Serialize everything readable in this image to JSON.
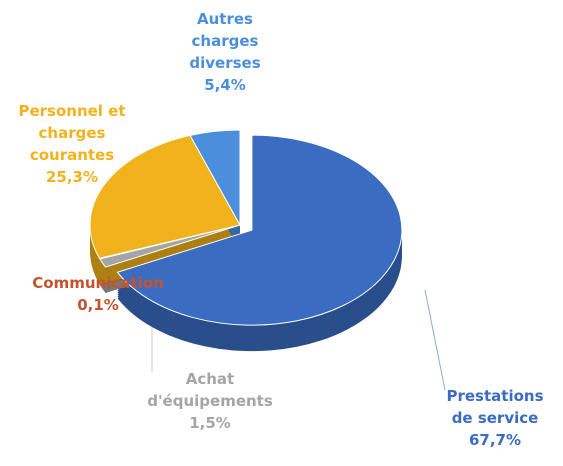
{
  "chart_data": {
    "type": "pie",
    "categories": [
      "Prestations de service",
      "Achat d'équipements",
      "Communication",
      "Personnel et charges courantes",
      "Autres charges diverses"
    ],
    "values": [
      67.7,
      1.5,
      0.1,
      25.3,
      5.4
    ],
    "value_labels": [
      "67,7%",
      "1,5%",
      "0,1%",
      "25,3%",
      "5,4%"
    ],
    "colors": [
      "#3a6cc2",
      "#a5a5a5",
      "#c4542f",
      "#f2b21c",
      "#4b8fdc"
    ]
  }
}
